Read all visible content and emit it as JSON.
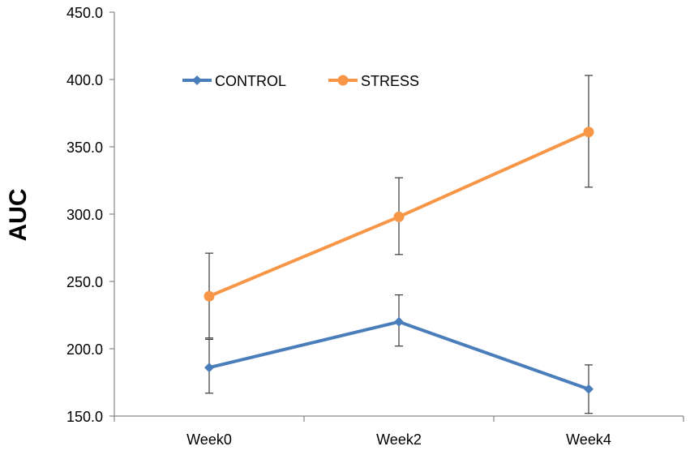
{
  "chart_data": {
    "type": "line",
    "title": "",
    "xlabel": "",
    "ylabel": "AUC",
    "categories": [
      "Week0",
      "Week2",
      "Week4"
    ],
    "ylim": [
      150,
      450
    ],
    "yticks": [
      150,
      200,
      250,
      300,
      350,
      400,
      450
    ],
    "ytick_labels": [
      "150.0",
      "200.0",
      "250.0",
      "300.0",
      "350.0",
      "400.0",
      "450.0"
    ],
    "grid": false,
    "legend_position": "top-left",
    "series": [
      {
        "name": "CONTROL",
        "color": "#4A7EBB",
        "marker": "diamond",
        "values": [
          186,
          220,
          170
        ],
        "error_upper": [
          207,
          240,
          188
        ],
        "error_lower": [
          167,
          202,
          152
        ]
      },
      {
        "name": "STRESS",
        "color": "#F79646",
        "marker": "circle",
        "values": [
          239,
          298,
          361
        ],
        "error_upper": [
          271,
          327,
          403
        ],
        "error_lower": [
          208,
          270,
          320
        ]
      }
    ]
  }
}
